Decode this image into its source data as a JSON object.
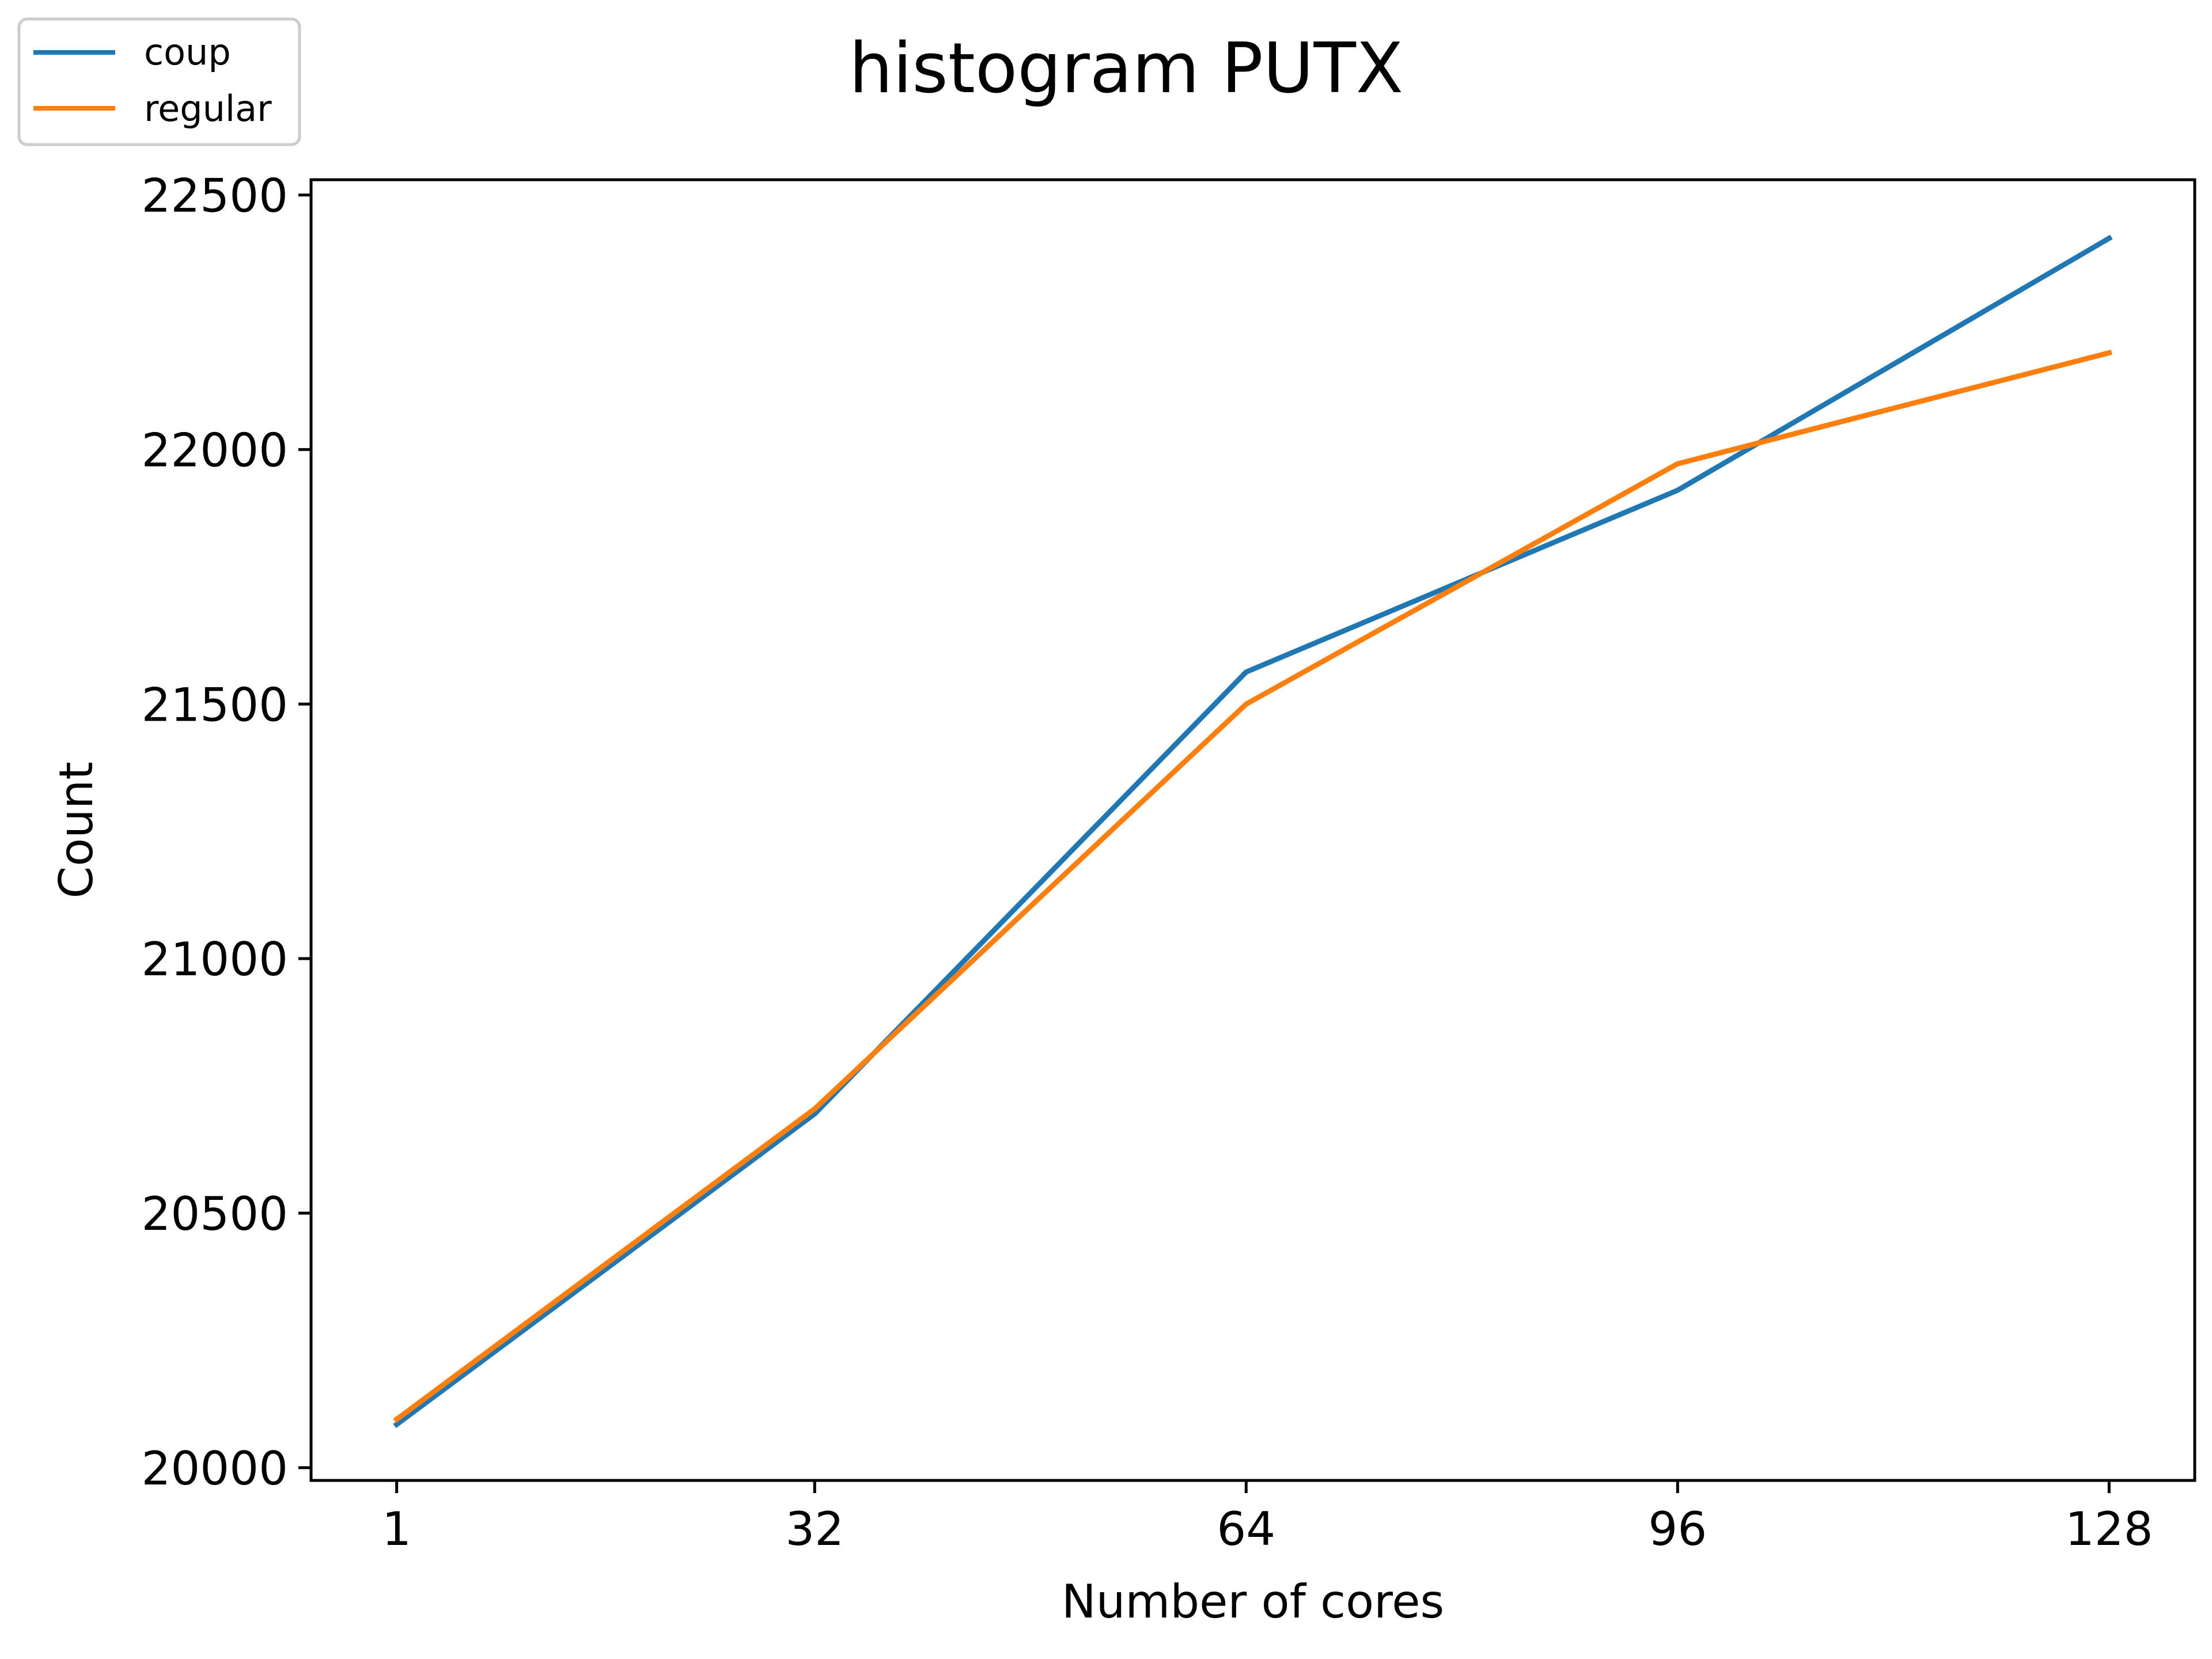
{
  "chart_data": {
    "type": "line",
    "title": "histogram PUTX",
    "xlabel": "Number of cores",
    "ylabel": "Count",
    "x": [
      1,
      32,
      64,
      96,
      128
    ],
    "x_ticks": [
      1,
      32,
      64,
      96,
      128
    ],
    "y_ticks": [
      20000,
      20500,
      21000,
      21500,
      22000,
      22500
    ],
    "xlim": [
      -5.35,
      134.35
    ],
    "ylim": [
      19975,
      22530
    ],
    "grid": false,
    "legend_position": "top-left, outside plot",
    "series": [
      {
        "name": "coup",
        "color": "#1f77b4",
        "values": [
          20085,
          20695,
          21563,
          21920,
          22415
        ]
      },
      {
        "name": "regular",
        "color": "#ff7f0e",
        "values": [
          20095,
          20705,
          21500,
          21972,
          22190
        ]
      }
    ]
  }
}
